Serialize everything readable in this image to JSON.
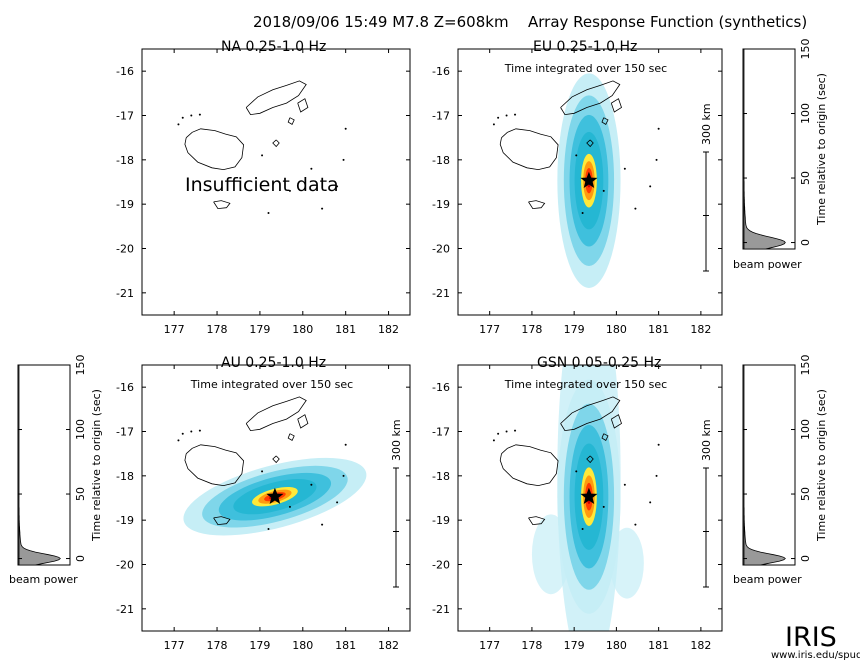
{
  "header": {
    "event": "2018/09/06 15:49  M7.8  Z=608km",
    "title": "Array Response Function (synthetics)"
  },
  "colors": {
    "colormap": [
      "#ffffff",
      "#c6eef6",
      "#7fd6ea",
      "#3fc0dd",
      "#25b7d3",
      "#ffe93a",
      "#ff9a10",
      "#ff3a00",
      "#d00000"
    ],
    "star": "#000000",
    "frame": "#000000",
    "beam_fill": "#999999"
  },
  "common": {
    "x_ticks": [
      "177",
      "178",
      "179",
      "180",
      "181",
      "182"
    ],
    "y_ticks": [
      "-16",
      "-17",
      "-18",
      "-19",
      "-20",
      "-21"
    ],
    "scale_label": "300 km",
    "integrated_note": "Time integrated over 150 sec",
    "beam_power_label": "beam power",
    "time_axis_label": "Time relative to origin (sec)",
    "time_ticks": [
      "0",
      "50",
      "100",
      "150"
    ]
  },
  "chart_data": [
    {
      "type": "heatmap",
      "panel": "NA",
      "title": "NA  0.25-1.0 Hz",
      "xlim": [
        176.25,
        182.5
      ],
      "ylim": [
        -21.5,
        -15.5
      ],
      "note": "Insufficient data",
      "peak": null,
      "beam_power": null
    },
    {
      "type": "heatmap",
      "panel": "EU",
      "title": "EU  0.25-1.0 Hz",
      "xlim": [
        176.25,
        182.5
      ],
      "ylim": [
        -21.5,
        -15.5
      ],
      "epicenter": {
        "lon": 179.35,
        "lat": -18.47
      },
      "peak": {
        "lon": 179.35,
        "lat": -18.47
      },
      "beam_power": {
        "time_range": [
          -5,
          150
        ],
        "peak_time": 0,
        "width": 6
      }
    },
    {
      "type": "heatmap",
      "panel": "AU",
      "title": "AU  0.25-1.0 Hz",
      "xlim": [
        176.25,
        182.5
      ],
      "ylim": [
        -21.5,
        -15.5
      ],
      "epicenter": {
        "lon": 179.35,
        "lat": -18.47
      },
      "peak": {
        "lon": 179.35,
        "lat": -18.47
      },
      "beam_power": {
        "time_range": [
          -5,
          150
        ],
        "peak_time": 0,
        "width": 5
      }
    },
    {
      "type": "heatmap",
      "panel": "GSN",
      "title": "GSN  0.05-0.25 Hz",
      "xlim": [
        176.25,
        182.5
      ],
      "ylim": [
        -21.5,
        -15.5
      ],
      "epicenter": {
        "lon": 179.35,
        "lat": -18.47
      },
      "peak": {
        "lon": 179.35,
        "lat": -18.47
      },
      "beam_power": {
        "time_range": [
          -5,
          150
        ],
        "peak_time": 0,
        "width": 5
      }
    }
  ],
  "logo": {
    "name": "IRIS",
    "url": "www.iris.edu/spud"
  }
}
